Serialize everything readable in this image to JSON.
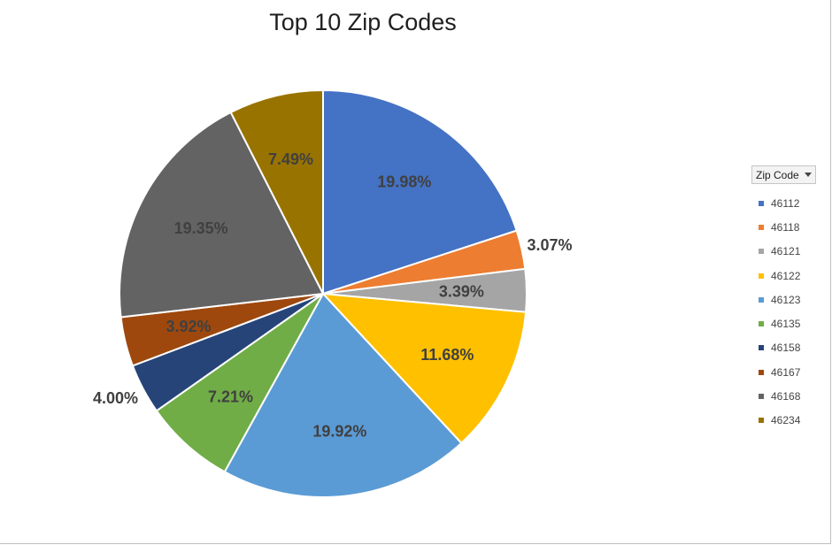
{
  "chart_data": {
    "type": "pie",
    "title": "Top 10 Zip Codes",
    "legend_title": "Zip Code",
    "legend_position": "right",
    "categories": [
      "46112",
      "46118",
      "46121",
      "46122",
      "46123",
      "46135",
      "46158",
      "46167",
      "46168",
      "46234"
    ],
    "values": [
      19.98,
      3.07,
      3.39,
      11.68,
      19.92,
      7.21,
      4.0,
      3.92,
      19.35,
      7.49
    ],
    "labels": [
      "19.98%",
      "3.07%",
      "3.39%",
      "11.68%",
      "19.92%",
      "7.21%",
      "4.00%",
      "3.92%",
      "19.35%",
      "7.49%"
    ],
    "label_placement": [
      "inside",
      "outside",
      "inside",
      "inside",
      "inside",
      "inside",
      "outside",
      "inside",
      "inside",
      "inside"
    ],
    "colors": [
      "#4472C4",
      "#ED7D31",
      "#A5A5A5",
      "#FFC000",
      "#5B9BD5",
      "#70AD47",
      "#264478",
      "#9E480E",
      "#636363",
      "#997300"
    ]
  }
}
